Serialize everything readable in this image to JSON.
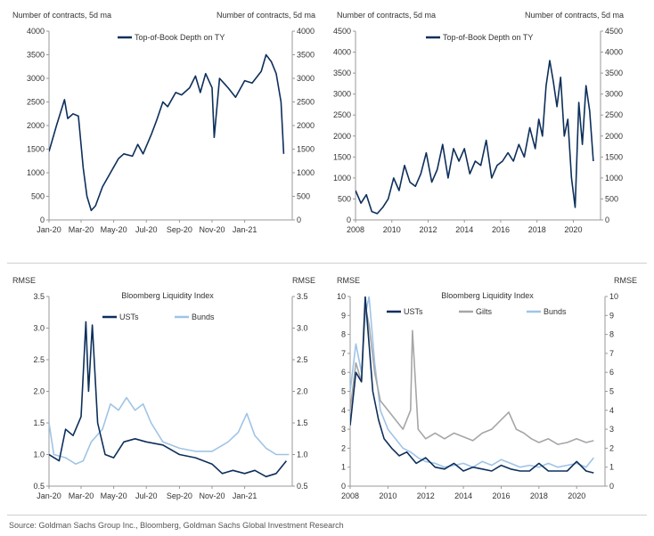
{
  "source": "Source: Goldman Sachs Group Inc., Bloomberg, Goldman Sachs Global Investment Research",
  "colors": {
    "navy": "#0d2f5b",
    "gray": "#a6a6a6",
    "lightblue": "#9fc4e6"
  },
  "chart_data": [
    {
      "type": "line",
      "left_axis_label": "Number of contracts, 5d ma",
      "right_axis_label": "Number of contracts, 5d ma",
      "ylim": [
        0,
        4000
      ],
      "yticks": [
        0,
        500,
        1000,
        1500,
        2000,
        2500,
        3000,
        3500,
        4000
      ],
      "xticks": [
        "Jan-20",
        "Mar-20",
        "May-20",
        "Jul-20",
        "Sep-20",
        "Nov-20",
        "Jan-21"
      ],
      "x_range": [
        "2020-01-01",
        "2021-03-31"
      ],
      "series": [
        {
          "name": "Top-of-Book Depth on TY",
          "color": "#0d2f5b",
          "x": [
            "2020-01-01",
            "2020-01-15",
            "2020-01-30",
            "2020-02-05",
            "2020-02-15",
            "2020-02-25",
            "2020-03-05",
            "2020-03-12",
            "2020-03-20",
            "2020-03-28",
            "2020-04-10",
            "2020-04-25",
            "2020-05-10",
            "2020-05-20",
            "2020-06-05",
            "2020-06-15",
            "2020-06-25",
            "2020-07-10",
            "2020-07-20",
            "2020-08-01",
            "2020-08-10",
            "2020-08-25",
            "2020-09-05",
            "2020-09-20",
            "2020-10-01",
            "2020-10-10",
            "2020-10-20",
            "2020-11-01",
            "2020-11-05",
            "2020-11-15",
            "2020-12-01",
            "2020-12-15",
            "2021-01-01",
            "2021-01-15",
            "2021-02-01",
            "2021-02-10",
            "2021-02-20",
            "2021-03-01",
            "2021-03-10",
            "2021-03-15"
          ],
          "values": [
            1450,
            2000,
            2550,
            2150,
            2250,
            2200,
            1100,
            500,
            200,
            300,
            700,
            1000,
            1300,
            1400,
            1350,
            1600,
            1400,
            1800,
            2100,
            2500,
            2400,
            2700,
            2650,
            2800,
            3050,
            2700,
            3100,
            2800,
            1750,
            3000,
            2800,
            2600,
            2950,
            2900,
            3150,
            3500,
            3350,
            3100,
            2500,
            1400
          ]
        }
      ]
    },
    {
      "type": "line",
      "left_axis_label": "Number of contracts, 5d ma",
      "right_axis_label": "Number of contracts, 5d ma",
      "ylim": [
        0,
        4500
      ],
      "yticks": [
        0,
        500,
        1000,
        1500,
        2000,
        2500,
        3000,
        3500,
        4000,
        4500
      ],
      "xticks": [
        "2008",
        "2010",
        "2012",
        "2014",
        "2016",
        "2018",
        "2020"
      ],
      "x_range": [
        2008,
        2021.5
      ],
      "series": [
        {
          "name": "Top-of-Book Depth on TY",
          "color": "#0d2f5b",
          "x": [
            2008.0,
            2008.3,
            2008.6,
            2008.9,
            2009.2,
            2009.5,
            2009.8,
            2010.1,
            2010.4,
            2010.7,
            2011.0,
            2011.3,
            2011.6,
            2011.9,
            2012.2,
            2012.5,
            2012.8,
            2013.1,
            2013.4,
            2013.7,
            2014.0,
            2014.3,
            2014.6,
            2014.9,
            2015.2,
            2015.5,
            2015.8,
            2016.1,
            2016.4,
            2016.7,
            2017.0,
            2017.3,
            2017.6,
            2017.9,
            2018.1,
            2018.3,
            2018.5,
            2018.7,
            2018.9,
            2019.1,
            2019.3,
            2019.5,
            2019.7,
            2019.9,
            2020.1,
            2020.3,
            2020.5,
            2020.7,
            2020.9,
            2021.1
          ],
          "values": [
            700,
            400,
            600,
            200,
            150,
            300,
            500,
            1000,
            700,
            1300,
            900,
            800,
            1100,
            1600,
            900,
            1200,
            1800,
            1000,
            1700,
            1400,
            1700,
            1100,
            1400,
            1300,
            1900,
            1000,
            1300,
            1400,
            1600,
            1400,
            1800,
            1500,
            2200,
            1700,
            2400,
            2000,
            3200,
            3800,
            3300,
            2700,
            3400,
            2000,
            2400,
            1000,
            300,
            2800,
            1800,
            3200,
            2600,
            1400
          ]
        }
      ]
    },
    {
      "type": "line",
      "left_axis_label": "RMSE",
      "right_axis_label": "RMSE",
      "title": "Bloomberg Liquidity Index",
      "ylim": [
        0.5,
        3.5
      ],
      "yticks": [
        0.5,
        1.0,
        1.5,
        2.0,
        2.5,
        3.0,
        3.5
      ],
      "xticks": [
        "Jan-20",
        "Mar-20",
        "May-20",
        "Jul-20",
        "Sep-20",
        "Nov-20",
        "Jan-21"
      ],
      "x_range": [
        "2020-01-01",
        "2021-03-31"
      ],
      "series": [
        {
          "name": "USTs",
          "color": "#0d2f5b",
          "x": [
            "2020-01-01",
            "2020-01-20",
            "2020-02-01",
            "2020-02-15",
            "2020-03-01",
            "2020-03-10",
            "2020-03-15",
            "2020-03-22",
            "2020-04-01",
            "2020-04-15",
            "2020-05-01",
            "2020-05-20",
            "2020-06-10",
            "2020-07-01",
            "2020-08-01",
            "2020-09-01",
            "2020-10-01",
            "2020-11-01",
            "2020-11-20",
            "2020-12-10",
            "2021-01-01",
            "2021-01-20",
            "2021-02-10",
            "2021-03-01",
            "2021-03-20"
          ],
          "values": [
            1.0,
            0.9,
            1.4,
            1.3,
            1.6,
            3.1,
            2.0,
            3.05,
            1.5,
            1.0,
            0.95,
            1.2,
            1.25,
            1.2,
            1.15,
            1.0,
            0.95,
            0.85,
            0.7,
            0.75,
            0.7,
            0.75,
            0.65,
            0.7,
            0.9
          ]
        },
        {
          "name": "Bunds",
          "color": "#9fc4e6",
          "x": [
            "2020-01-01",
            "2020-01-10",
            "2020-02-01",
            "2020-02-20",
            "2020-03-05",
            "2020-03-20",
            "2020-04-10",
            "2020-04-25",
            "2020-05-10",
            "2020-05-25",
            "2020-06-10",
            "2020-06-25",
            "2020-07-10",
            "2020-08-01",
            "2020-09-01",
            "2020-10-01",
            "2020-11-01",
            "2020-12-01",
            "2020-12-20",
            "2021-01-05",
            "2021-01-20",
            "2021-02-10",
            "2021-03-01",
            "2021-03-25"
          ],
          "values": [
            1.5,
            1.0,
            0.95,
            0.85,
            0.9,
            1.2,
            1.4,
            1.8,
            1.7,
            1.9,
            1.7,
            1.8,
            1.5,
            1.2,
            1.1,
            1.05,
            1.05,
            1.2,
            1.35,
            1.65,
            1.3,
            1.1,
            1.0,
            1.0
          ]
        }
      ]
    },
    {
      "type": "line",
      "left_axis_label": "RMSE",
      "right_axis_label": "RMSE",
      "title": "Bloomberg Liquidity Index",
      "ylim": [
        0,
        10
      ],
      "yticks": [
        0,
        1,
        2,
        3,
        4,
        5,
        6,
        7,
        8,
        9,
        10
      ],
      "xticks": [
        "2008",
        "2010",
        "2012",
        "2014",
        "2016",
        "2018",
        "2020"
      ],
      "x_range": [
        2008,
        2021.5
      ],
      "series": [
        {
          "name": "USTs",
          "color": "#0d2f5b",
          "x": [
            2008.0,
            2008.3,
            2008.6,
            2008.8,
            2009.0,
            2009.2,
            2009.5,
            2009.8,
            2010.2,
            2010.6,
            2011.0,
            2011.5,
            2012.0,
            2012.5,
            2013.0,
            2013.5,
            2014.0,
            2014.5,
            2015.0,
            2015.5,
            2016.0,
            2016.5,
            2017.0,
            2017.5,
            2018.0,
            2018.5,
            2019.0,
            2019.5,
            2020.0,
            2020.5,
            2020.9
          ],
          "values": [
            3.2,
            6.0,
            5.5,
            10.0,
            7.5,
            5.0,
            3.5,
            2.5,
            2.0,
            1.6,
            1.8,
            1.2,
            1.5,
            1.0,
            0.9,
            1.2,
            0.8,
            1.0,
            0.9,
            0.8,
            1.1,
            0.9,
            0.8,
            0.8,
            1.2,
            0.8,
            0.8,
            0.8,
            1.3,
            0.8,
            0.7
          ]
        },
        {
          "name": "Gilts",
          "color": "#a6a6a6",
          "x": [
            2008.0,
            2008.3,
            2008.6,
            2008.8,
            2009.0,
            2009.3,
            2009.6,
            2010.0,
            2010.4,
            2010.8,
            2011.2,
            2011.3,
            2011.6,
            2012.0,
            2012.5,
            2013.0,
            2013.5,
            2014.0,
            2014.5,
            2015.0,
            2015.5,
            2016.0,
            2016.4,
            2016.8,
            2017.2,
            2017.6,
            2018.0,
            2018.5,
            2019.0,
            2019.5,
            2020.0,
            2020.5,
            2020.9
          ],
          "values": [
            4.0,
            6.5,
            5.5,
            9.5,
            8.5,
            6.0,
            4.5,
            4.0,
            3.5,
            3.0,
            4.0,
            8.2,
            3.0,
            2.5,
            2.8,
            2.5,
            2.8,
            2.6,
            2.4,
            2.8,
            3.0,
            3.5,
            3.9,
            3.0,
            2.8,
            2.5,
            2.3,
            2.5,
            2.2,
            2.3,
            2.5,
            2.3,
            2.4
          ]
        },
        {
          "name": "Bunds",
          "color": "#9fc4e6",
          "x": [
            2008.0,
            2008.3,
            2008.6,
            2008.8,
            2009.0,
            2009.3,
            2009.6,
            2010.0,
            2010.4,
            2010.8,
            2011.2,
            2011.6,
            2012.0,
            2012.5,
            2013.0,
            2013.5,
            2014.0,
            2014.5,
            2015.0,
            2015.5,
            2016.0,
            2016.5,
            2017.0,
            2017.5,
            2018.0,
            2018.5,
            2019.0,
            2019.5,
            2020.0,
            2020.5,
            2020.9
          ],
          "values": [
            5.0,
            7.5,
            6.0,
            9.0,
            10.0,
            6.5,
            4.0,
            3.0,
            2.5,
            2.0,
            1.8,
            1.5,
            1.3,
            1.2,
            1.0,
            1.1,
            1.2,
            1.0,
            1.3,
            1.1,
            1.4,
            1.2,
            1.0,
            1.1,
            1.0,
            1.2,
            1.0,
            1.1,
            1.2,
            1.0,
            1.5
          ]
        }
      ]
    }
  ]
}
